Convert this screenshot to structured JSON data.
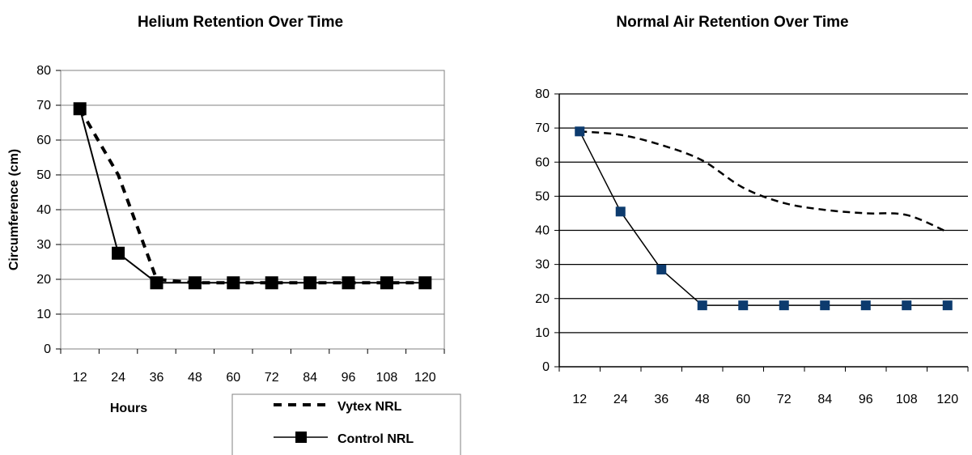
{
  "chart_data": [
    {
      "type": "line",
      "title": "Helium Retention Over Time",
      "xlabel": "Hours",
      "ylabel": "Circumference (cm)",
      "categories": [
        "12",
        "24",
        "36",
        "48",
        "60",
        "72",
        "84",
        "96",
        "108",
        "120"
      ],
      "ylim": [
        0,
        80
      ],
      "yticks": [
        "0",
        "10",
        "20",
        "30",
        "40",
        "50",
        "60",
        "70",
        "80"
      ],
      "grid": true,
      "legend_position": "bottom-right",
      "series": [
        {
          "name": "Vytex NRL",
          "style": "dashed",
          "color": "#000000",
          "values": [
            69,
            50,
            20,
            19,
            19,
            19,
            19,
            19,
            19,
            19
          ]
        },
        {
          "name": "Control NRL",
          "style": "solid-square-markers",
          "color": "#000000",
          "values": [
            69,
            27.5,
            19,
            19,
            19,
            19,
            19,
            19,
            19,
            19
          ]
        }
      ]
    },
    {
      "type": "line",
      "title": "Normal Air Retention Over Time",
      "categories": [
        "12",
        "24",
        "36",
        "48",
        "60",
        "72",
        "84",
        "96",
        "108",
        "120"
      ],
      "ylim": [
        0,
        80
      ],
      "yticks": [
        "0",
        "10",
        "20",
        "30",
        "40",
        "50",
        "60",
        "70",
        "80"
      ],
      "grid": true,
      "series": [
        {
          "style": "dashed",
          "color": "#000000",
          "values": [
            69,
            68,
            65,
            60.5,
            52.5,
            48,
            46,
            45,
            44.5,
            39.5
          ]
        },
        {
          "style": "solid-square-markers",
          "color": "#000000",
          "marker_color": "#0d3b6e",
          "values": [
            69,
            45.5,
            28.5,
            18,
            18,
            18,
            18,
            18,
            18,
            18
          ]
        }
      ]
    }
  ]
}
